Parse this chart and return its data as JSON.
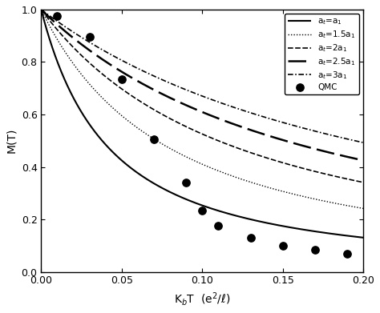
{
  "title": "",
  "xlabel": "K$_b$T  (e$^2$/$\\ell$)",
  "ylabel": "M(T)",
  "xlim": [
    0,
    0.2
  ],
  "ylim": [
    0.0,
    1.0
  ],
  "background_color": "#ffffff",
  "curves": [
    {
      "label": "a$_t$=a$_1$",
      "linewidth": 1.5,
      "color": "#000000",
      "scale": 18.0,
      "power": 0.75
    },
    {
      "label": "a$_t$=1.5a$_1$",
      "linewidth": 1.0,
      "color": "#000000",
      "scale": 9.5,
      "power": 0.75
    },
    {
      "label": "a$_t$=2a$_1$",
      "linewidth": 1.2,
      "color": "#000000",
      "scale": 6.2,
      "power": 0.75
    },
    {
      "label": "a$_t$=2.5a$_1$",
      "linewidth": 1.8,
      "color": "#000000",
      "scale": 4.5,
      "power": 0.75
    },
    {
      "label": "a$_t$=3a$_1$",
      "linewidth": 1.2,
      "color": "#000000",
      "scale": 3.5,
      "power": 0.75
    }
  ],
  "qmc_x": [
    0.01,
    0.03,
    0.05,
    0.07,
    0.09,
    0.1,
    0.11,
    0.13,
    0.15,
    0.17,
    0.19
  ],
  "qmc_y": [
    0.975,
    0.895,
    0.735,
    0.505,
    0.34,
    0.235,
    0.175,
    0.13,
    0.1,
    0.085,
    0.07
  ],
  "legend_loc": "upper right",
  "xticks": [
    0.0,
    0.05,
    0.1,
    0.15,
    0.2
  ],
  "yticks": [
    0.0,
    0.2,
    0.4,
    0.6,
    0.8,
    1.0
  ]
}
